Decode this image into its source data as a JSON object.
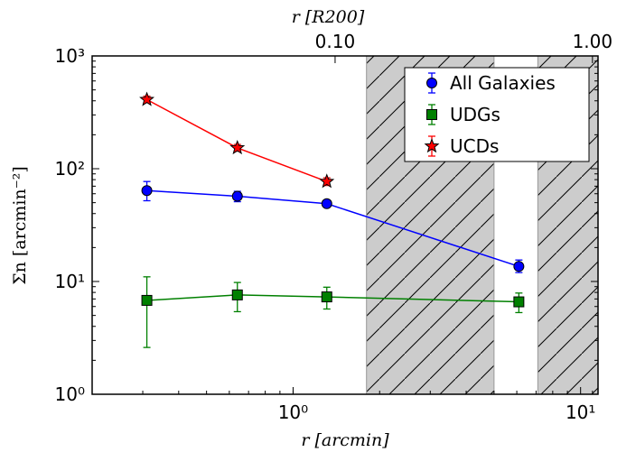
{
  "chart_data": {
    "type": "scatter",
    "xlabel": "r [arcmin]",
    "ylabel": "Σn [arcmin⁻²]",
    "top_xlabel": "r [R200]",
    "x_scale": "log",
    "y_scale": "log",
    "xlim": [
      0.2,
      11.5
    ],
    "ylim": [
      1,
      1000
    ],
    "x_ticks": [
      {
        "value": 1,
        "label": "10⁰"
      },
      {
        "value": 10,
        "label": "10¹"
      }
    ],
    "y_ticks": [
      {
        "value": 1,
        "label": "10⁰"
      },
      {
        "value": 10,
        "label": "10¹"
      },
      {
        "value": 100,
        "label": "10²"
      },
      {
        "value": 1000,
        "label": "10³"
      }
    ],
    "top_ticks": [
      {
        "x_arcmin": 1.4,
        "label": "0.10"
      },
      {
        "x_arcmin": 11.0,
        "label": "1.00"
      }
    ],
    "shaded_regions": [
      {
        "x": [
          1.8,
          5.0
        ]
      },
      {
        "x": [
          7.1,
          11.5
        ]
      }
    ],
    "legend_position": "top-right",
    "series": [
      {
        "name": "All Galaxies",
        "color": "#0000ff",
        "marker": "circle",
        "points": [
          {
            "x": 0.31,
            "y": 64,
            "ylo": 52,
            "yhi": 77
          },
          {
            "x": 0.64,
            "y": 57,
            "ylo": 51,
            "yhi": 63
          },
          {
            "x": 1.31,
            "y": 49,
            "ylo": 46,
            "yhi": 52
          },
          {
            "x": 6.1,
            "y": 13.6,
            "ylo": 12,
            "yhi": 15.5
          }
        ]
      },
      {
        "name": "UDGs",
        "color": "#008000",
        "marker": "square",
        "points": [
          {
            "x": 0.31,
            "y": 6.8,
            "ylo": 2.6,
            "yhi": 11
          },
          {
            "x": 0.64,
            "y": 7.6,
            "ylo": 5.4,
            "yhi": 9.8
          },
          {
            "x": 1.31,
            "y": 7.3,
            "ylo": 5.7,
            "yhi": 8.9
          },
          {
            "x": 6.1,
            "y": 6.6,
            "ylo": 5.3,
            "yhi": 7.9
          }
        ]
      },
      {
        "name": "UCDs",
        "color": "#ff0000",
        "marker": "star",
        "points": [
          {
            "x": 0.31,
            "y": 410,
            "ylo": 385,
            "yhi": 440
          },
          {
            "x": 0.64,
            "y": 153,
            "ylo": 143,
            "yhi": 164
          },
          {
            "x": 1.31,
            "y": 77,
            "ylo": 71,
            "yhi": 83
          }
        ]
      }
    ]
  }
}
